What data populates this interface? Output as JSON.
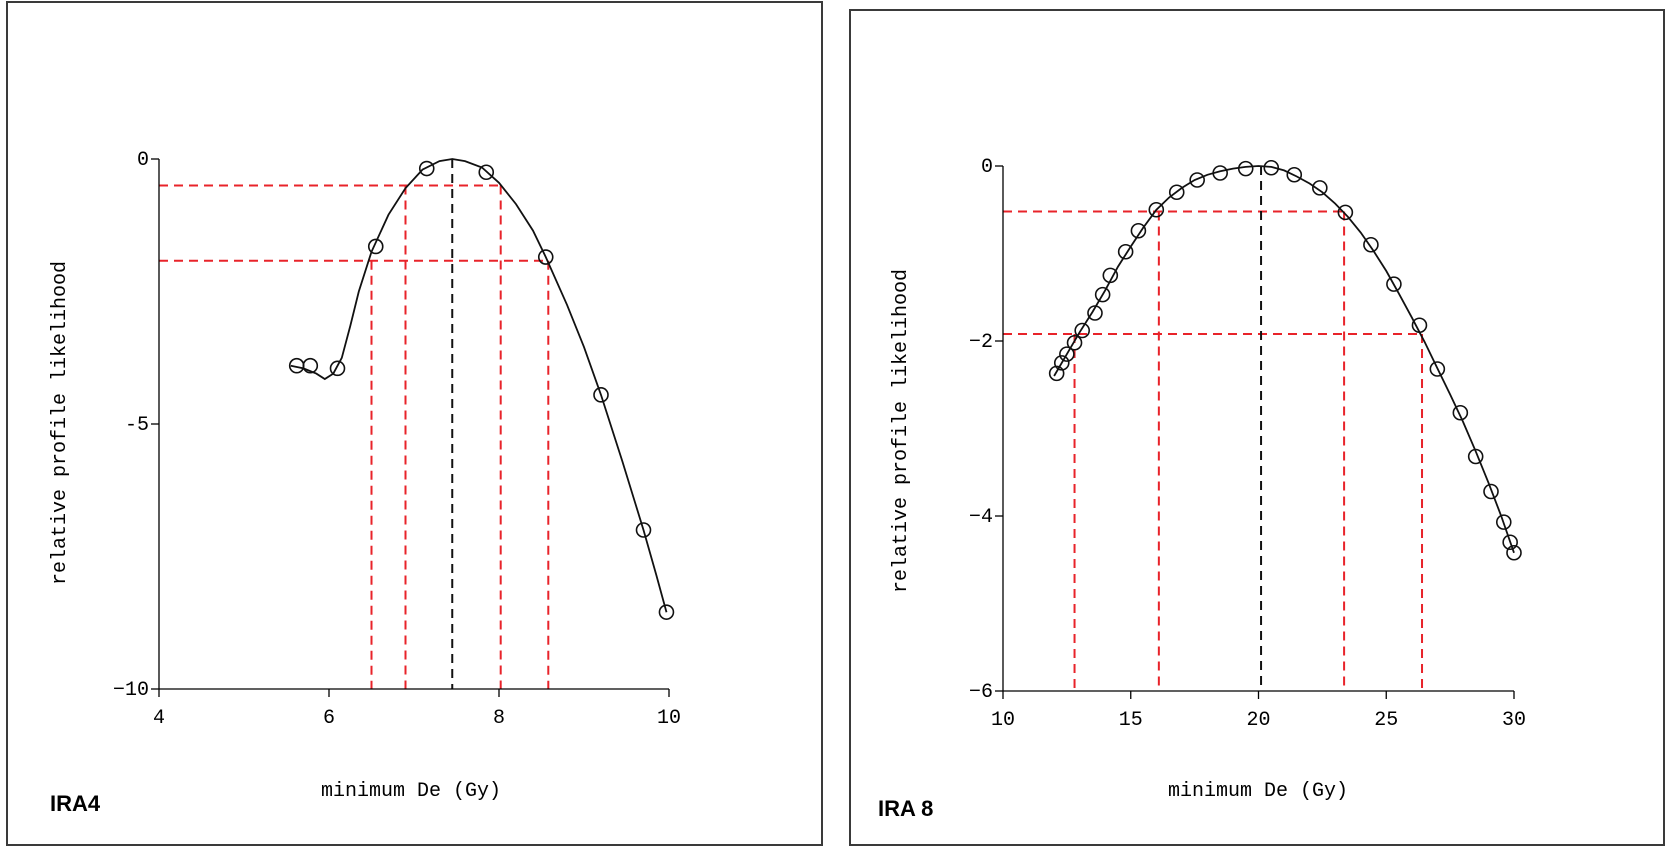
{
  "chart_data": [
    {
      "type": "scatter",
      "panel_label": "IRA4",
      "xlabel": "minimum De (Gy)",
      "ylabel": "relative profile likelihood",
      "xlim": [
        4,
        10
      ],
      "ylim": [
        -10,
        0
      ],
      "xticks": [
        4,
        6,
        8,
        10
      ],
      "xtick_labels": [
        "4",
        "6",
        "8",
        "10"
      ],
      "yticks": [
        0,
        -5,
        -10
      ],
      "ytick_labels": [
        "0",
        "-5",
        "−10"
      ],
      "points": [
        {
          "x": 5.62,
          "y": -3.9
        },
        {
          "x": 5.78,
          "y": -3.9
        },
        {
          "x": 6.1,
          "y": -3.95
        },
        {
          "x": 6.55,
          "y": -1.65
        },
        {
          "x": 7.15,
          "y": -0.18
        },
        {
          "x": 7.85,
          "y": -0.25
        },
        {
          "x": 8.55,
          "y": -1.85
        },
        {
          "x": 9.2,
          "y": -4.45
        },
        {
          "x": 9.7,
          "y": -7.0
        },
        {
          "x": 9.97,
          "y": -8.55
        }
      ],
      "curve": [
        [
          5.55,
          -3.9
        ],
        [
          5.7,
          -3.95
        ],
        [
          5.85,
          -4.05
        ],
        [
          5.95,
          -4.15
        ],
        [
          6.05,
          -4.05
        ],
        [
          6.15,
          -3.75
        ],
        [
          6.25,
          -3.15
        ],
        [
          6.35,
          -2.5
        ],
        [
          6.5,
          -1.75
        ],
        [
          6.7,
          -1.05
        ],
        [
          6.9,
          -0.55
        ],
        [
          7.1,
          -0.2
        ],
        [
          7.3,
          -0.04
        ],
        [
          7.45,
          0.0
        ],
        [
          7.6,
          -0.04
        ],
        [
          7.8,
          -0.16
        ],
        [
          8.0,
          -0.45
        ],
        [
          8.2,
          -0.85
        ],
        [
          8.4,
          -1.35
        ],
        [
          8.55,
          -1.85
        ],
        [
          8.8,
          -2.75
        ],
        [
          9.0,
          -3.55
        ],
        [
          9.2,
          -4.45
        ],
        [
          9.45,
          -5.7
        ],
        [
          9.7,
          -7.0
        ],
        [
          9.85,
          -7.85
        ],
        [
          9.97,
          -8.55
        ]
      ],
      "reference_lines": {
        "horizontal_y": [
          -0.5,
          -1.92
        ],
        "vertical_x": [
          6.5,
          6.9,
          8.02,
          8.58
        ],
        "mode_x": 7.45
      }
    },
    {
      "type": "scatter",
      "panel_label": "IRA 8",
      "xlabel": "minimum De (Gy)",
      "ylabel": "relative profile likelihood",
      "xlim": [
        10,
        30
      ],
      "ylim": [
        -6,
        0
      ],
      "xticks": [
        10,
        15,
        20,
        25,
        30
      ],
      "xtick_labels": [
        "10",
        "15",
        "20",
        "25",
        "30"
      ],
      "yticks": [
        0,
        -2,
        -4,
        -6
      ],
      "ytick_labels": [
        "0",
        "−2",
        "−4",
        "−6"
      ],
      "points": [
        {
          "x": 12.1,
          "y": -2.37
        },
        {
          "x": 12.3,
          "y": -2.25
        },
        {
          "x": 12.5,
          "y": -2.15
        },
        {
          "x": 12.8,
          "y": -2.02
        },
        {
          "x": 13.1,
          "y": -1.88
        },
        {
          "x": 13.6,
          "y": -1.68
        },
        {
          "x": 13.9,
          "y": -1.47
        },
        {
          "x": 14.2,
          "y": -1.25
        },
        {
          "x": 14.8,
          "y": -0.98
        },
        {
          "x": 15.3,
          "y": -0.74
        },
        {
          "x": 16.0,
          "y": -0.5
        },
        {
          "x": 16.8,
          "y": -0.3
        },
        {
          "x": 17.6,
          "y": -0.16
        },
        {
          "x": 18.5,
          "y": -0.08
        },
        {
          "x": 19.5,
          "y": -0.03
        },
        {
          "x": 20.5,
          "y": -0.02
        },
        {
          "x": 21.4,
          "y": -0.1
        },
        {
          "x": 22.4,
          "y": -0.25
        },
        {
          "x": 23.4,
          "y": -0.53
        },
        {
          "x": 24.4,
          "y": -0.9
        },
        {
          "x": 25.3,
          "y": -1.35
        },
        {
          "x": 26.3,
          "y": -1.82
        },
        {
          "x": 27.0,
          "y": -2.32
        },
        {
          "x": 27.9,
          "y": -2.82
        },
        {
          "x": 28.5,
          "y": -3.32
        },
        {
          "x": 29.1,
          "y": -3.72
        },
        {
          "x": 29.6,
          "y": -4.07
        },
        {
          "x": 29.85,
          "y": -4.3
        },
        {
          "x": 30.0,
          "y": -4.42
        }
      ],
      "curve": [
        [
          12.0,
          -2.4
        ],
        [
          12.5,
          -2.15
        ],
        [
          13.0,
          -1.9
        ],
        [
          13.5,
          -1.67
        ],
        [
          14.0,
          -1.42
        ],
        [
          14.5,
          -1.15
        ],
        [
          15.0,
          -0.92
        ],
        [
          15.5,
          -0.7
        ],
        [
          16.0,
          -0.5
        ],
        [
          16.5,
          -0.36
        ],
        [
          17.0,
          -0.25
        ],
        [
          17.5,
          -0.16
        ],
        [
          18.0,
          -0.1
        ],
        [
          18.5,
          -0.06
        ],
        [
          19.0,
          -0.03
        ],
        [
          19.5,
          -0.01
        ],
        [
          20.0,
          0.0
        ],
        [
          20.5,
          -0.01
        ],
        [
          21.0,
          -0.05
        ],
        [
          21.5,
          -0.12
        ],
        [
          22.0,
          -0.2
        ],
        [
          22.5,
          -0.3
        ],
        [
          23.0,
          -0.43
        ],
        [
          23.5,
          -0.58
        ],
        [
          24.0,
          -0.76
        ],
        [
          24.5,
          -0.97
        ],
        [
          25.0,
          -1.2
        ],
        [
          25.5,
          -1.46
        ],
        [
          26.0,
          -1.73
        ],
        [
          26.5,
          -2.01
        ],
        [
          27.0,
          -2.31
        ],
        [
          27.5,
          -2.61
        ],
        [
          28.0,
          -2.92
        ],
        [
          28.5,
          -3.26
        ],
        [
          29.0,
          -3.62
        ],
        [
          29.5,
          -4.0
        ],
        [
          30.0,
          -4.42
        ]
      ],
      "reference_lines": {
        "horizontal_y": [
          -0.52,
          -1.92
        ],
        "vertical_x": [
          12.8,
          16.1,
          23.35,
          26.4
        ],
        "mode_x": 20.1
      }
    }
  ]
}
